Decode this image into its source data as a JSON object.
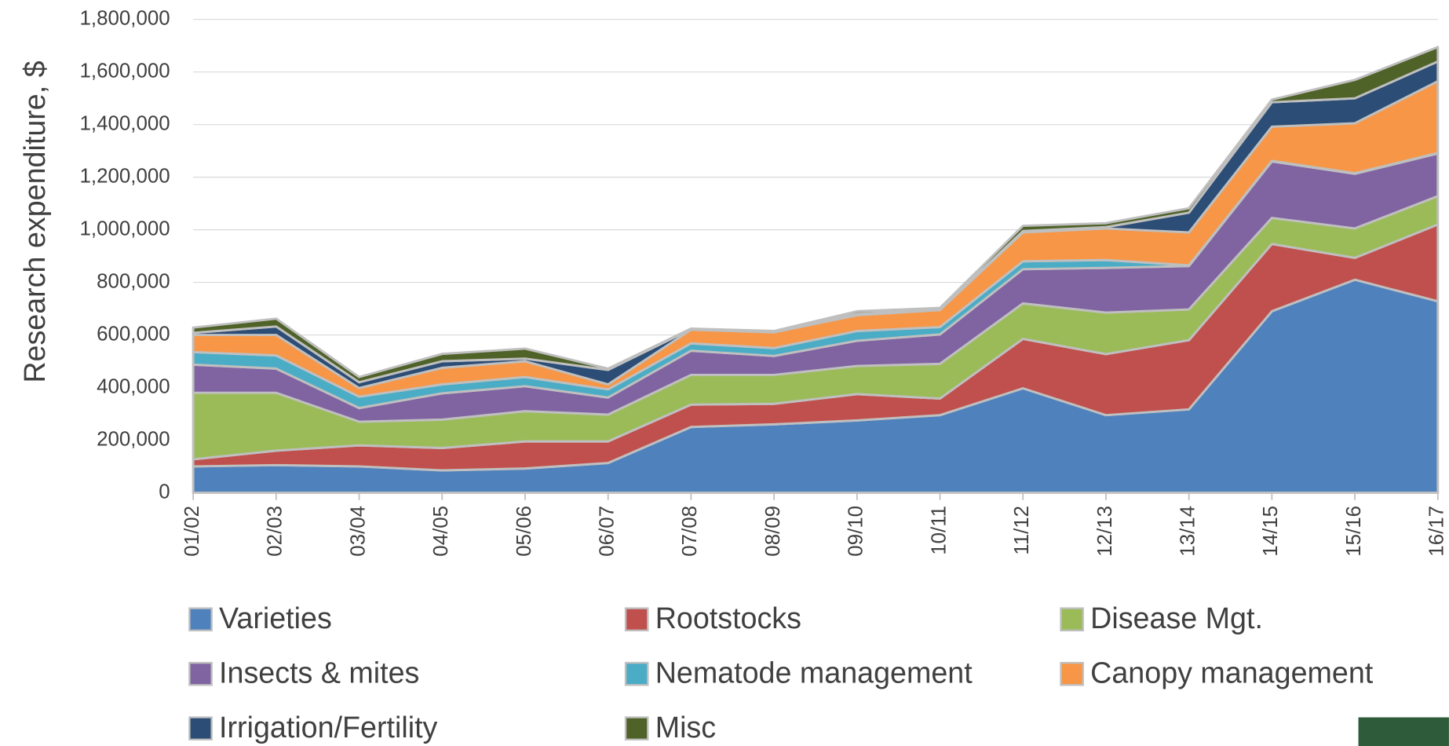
{
  "chart_data": {
    "type": "stacked_area",
    "y_label": "Research expenditure, $",
    "categories": [
      "01/02",
      "02/03",
      "03/04",
      "04/05",
      "05/06",
      "06/07",
      "07/08",
      "08/09",
      "09/10",
      "10/11",
      "11/12",
      "12/13",
      "13/14",
      "14/15",
      "15/16",
      "16/17"
    ],
    "series": [
      {
        "name": "Varieties",
        "color": "#4f81bd",
        "values": [
          100000,
          105000,
          100000,
          85000,
          92000,
          113000,
          250000,
          260000,
          275000,
          295000,
          397000,
          295000,
          317000,
          690000,
          810000,
          728000
        ]
      },
      {
        "name": "Rootstocks",
        "color": "#c0504d",
        "values": [
          27000,
          55000,
          80000,
          85000,
          103000,
          82000,
          85000,
          78000,
          100000,
          63000,
          188000,
          232000,
          263000,
          256000,
          83000,
          292000
        ]
      },
      {
        "name": "Disease Mgt.",
        "color": "#9bbb59",
        "values": [
          253000,
          220000,
          90000,
          108000,
          115000,
          102000,
          113000,
          110000,
          107000,
          132000,
          135000,
          158000,
          117000,
          99000,
          112000,
          108000
        ]
      },
      {
        "name": "Insects & mites",
        "color": "#8064a2",
        "values": [
          107000,
          92000,
          52000,
          100000,
          95000,
          65000,
          92000,
          72000,
          96000,
          112000,
          130000,
          170000,
          165000,
          215000,
          208000,
          162000
        ]
      },
      {
        "name": "Nematode management",
        "color": "#4bacc6",
        "values": [
          48000,
          50000,
          43000,
          34000,
          35000,
          31000,
          28000,
          30000,
          37000,
          28000,
          30000,
          30000,
          3000,
          2000,
          2000,
          2000
        ]
      },
      {
        "name": "Canopy management",
        "color": "#f79646",
        "values": [
          65000,
          78000,
          33000,
          63000,
          60000,
          19000,
          52000,
          60000,
          60000,
          65000,
          110000,
          120000,
          125000,
          130000,
          190000,
          273000
        ]
      },
      {
        "name": "Irrigation/Fertility",
        "color": "#2c4d75",
        "values": [
          8000,
          32000,
          22000,
          25000,
          10000,
          55000,
          2000,
          2000,
          5000,
          3000,
          5000,
          5000,
          75000,
          93000,
          95000,
          75000
        ]
      },
      {
        "name": "Misc",
        "color": "#4f6228",
        "values": [
          20000,
          30000,
          20000,
          28000,
          38000,
          5000,
          2000,
          3000,
          10000,
          5000,
          20000,
          15000,
          17000,
          10000,
          70000,
          55000
        ]
      }
    ],
    "ylim": [
      0,
      1800000
    ],
    "yticks": [
      0,
      {
        "value": 200000,
        "label": "200,000"
      },
      {
        "value": 400000,
        "label": "400,000"
      },
      {
        "value": 600000,
        "label": "600,000"
      },
      {
        "value": 800000,
        "label": "800,000"
      },
      {
        "value": 1000000,
        "label": "1,000,000"
      },
      {
        "value": 1200000,
        "label": "1,200,000"
      },
      {
        "value": 1400000,
        "label": "1,400,000"
      },
      {
        "value": 1600000,
        "label": "1,600,000"
      },
      {
        "value": 1800000,
        "label": "1,800,000"
      }
    ],
    "grid": true
  }
}
